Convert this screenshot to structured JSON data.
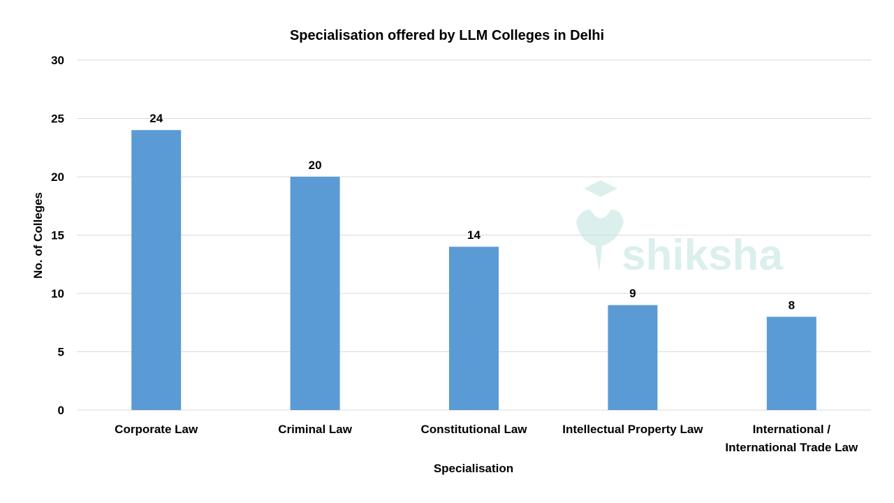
{
  "chart_data": {
    "type": "bar",
    "title": "Specialisation offered by LLM Colleges in Delhi",
    "xlabel": "Specialisation",
    "ylabel": "No. of Colleges",
    "categories": [
      [
        "Corporate Law"
      ],
      [
        "Criminal Law"
      ],
      [
        "Constitutional Law"
      ],
      [
        "Intellectual Property Law"
      ],
      [
        "International /",
        "International Trade Law"
      ]
    ],
    "values": [
      24,
      20,
      14,
      9,
      8
    ],
    "ylim": [
      0,
      30
    ],
    "yticks": [
      0,
      5,
      10,
      15,
      20,
      25,
      30
    ],
    "grid": true,
    "data_labels": true,
    "bar_color": "#5B9BD5",
    "grid_color": "#D9D9D9"
  },
  "watermark": {
    "text": "shiksha",
    "color": "#BFE3E0"
  }
}
